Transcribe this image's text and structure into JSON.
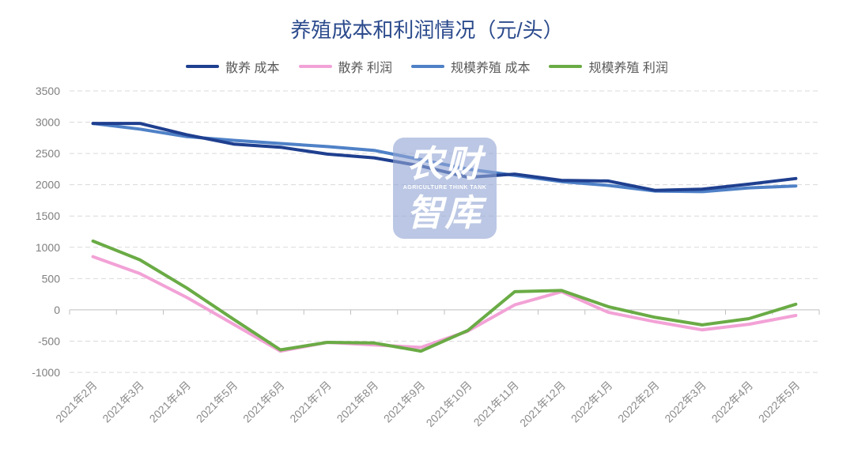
{
  "chart_data": {
    "type": "line",
    "title": "养殖成本和利润情况（元/头）",
    "xlabel": "",
    "ylabel": "",
    "categories": [
      "2021年2月",
      "2021年3月",
      "2021年4月",
      "2021年5月",
      "2021年6月",
      "2021年7月",
      "2021年8月",
      "2021年9月",
      "2021年10月",
      "2021年11月",
      "2021年12月",
      "2022年1月",
      "2022年2月",
      "2022年3月",
      "2022年4月",
      "2022年5月"
    ],
    "series": [
      {
        "name": "散养 成本",
        "color": "#1f3f8f",
        "values": [
          2980,
          2980,
          2800,
          2650,
          2600,
          2490,
          2430,
          2300,
          2120,
          2170,
          2070,
          2060,
          1910,
          1930,
          2010,
          2100
        ]
      },
      {
        "name": "散养 利润",
        "color": "#f2a2d6",
        "values": [
          850,
          580,
          200,
          -230,
          -660,
          -520,
          -560,
          -600,
          -340,
          80,
          290,
          -40,
          -190,
          -320,
          -230,
          -90
        ]
      },
      {
        "name": "规模养殖 成本",
        "color": "#4f81c7",
        "values": [
          2980,
          2890,
          2770,
          2710,
          2660,
          2610,
          2550,
          2400,
          2250,
          2150,
          2050,
          1990,
          1900,
          1890,
          1950,
          1980
        ]
      },
      {
        "name": "规模养殖 利润",
        "color": "#6aab45",
        "values": [
          1100,
          800,
          350,
          -150,
          -640,
          -520,
          -530,
          -660,
          -330,
          290,
          310,
          50,
          -120,
          -240,
          -140,
          90
        ]
      }
    ],
    "ylim": [
      -1000,
      3500
    ],
    "yticks": [
      3500,
      3000,
      2500,
      2000,
      1500,
      1000,
      500,
      0,
      -500,
      -1000
    ],
    "grid": true,
    "legend": "top"
  },
  "watermark": {
    "top": "农财",
    "sub": "AGRICULTURE THINK TANK",
    "bottom": "智库"
  }
}
